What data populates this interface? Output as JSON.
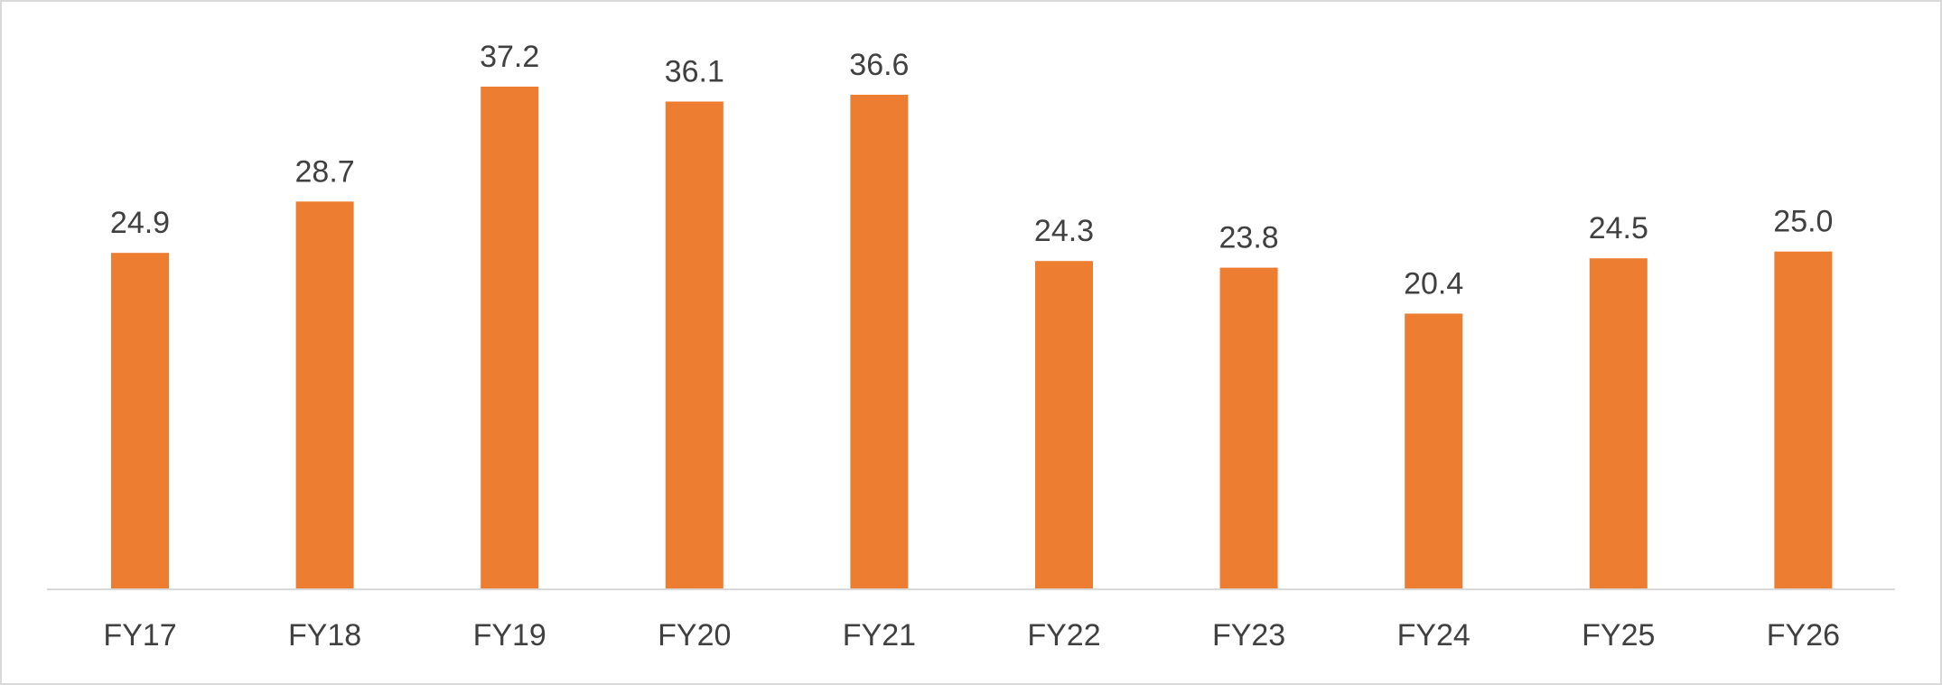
{
  "chart_data": {
    "type": "bar",
    "title": "",
    "xlabel": "",
    "ylabel": "",
    "categories": [
      "FY17",
      "FY18",
      "FY19",
      "FY20",
      "FY21",
      "FY22",
      "FY23",
      "FY24",
      "FY25",
      "FY26"
    ],
    "values": [
      24.9,
      28.7,
      37.2,
      36.1,
      36.6,
      24.3,
      23.8,
      20.4,
      24.5,
      25.0
    ],
    "data_labels": [
      "24.9",
      "28.7",
      "37.2",
      "36.1",
      "36.6",
      "24.3",
      "23.8",
      "20.4",
      "24.5",
      "25.0"
    ],
    "ylim": [
      0,
      40
    ],
    "grid": false,
    "legend": "none",
    "bar_color": "#ed7d31",
    "axis_color": "#d9d9d9",
    "text_color": "#404040"
  }
}
